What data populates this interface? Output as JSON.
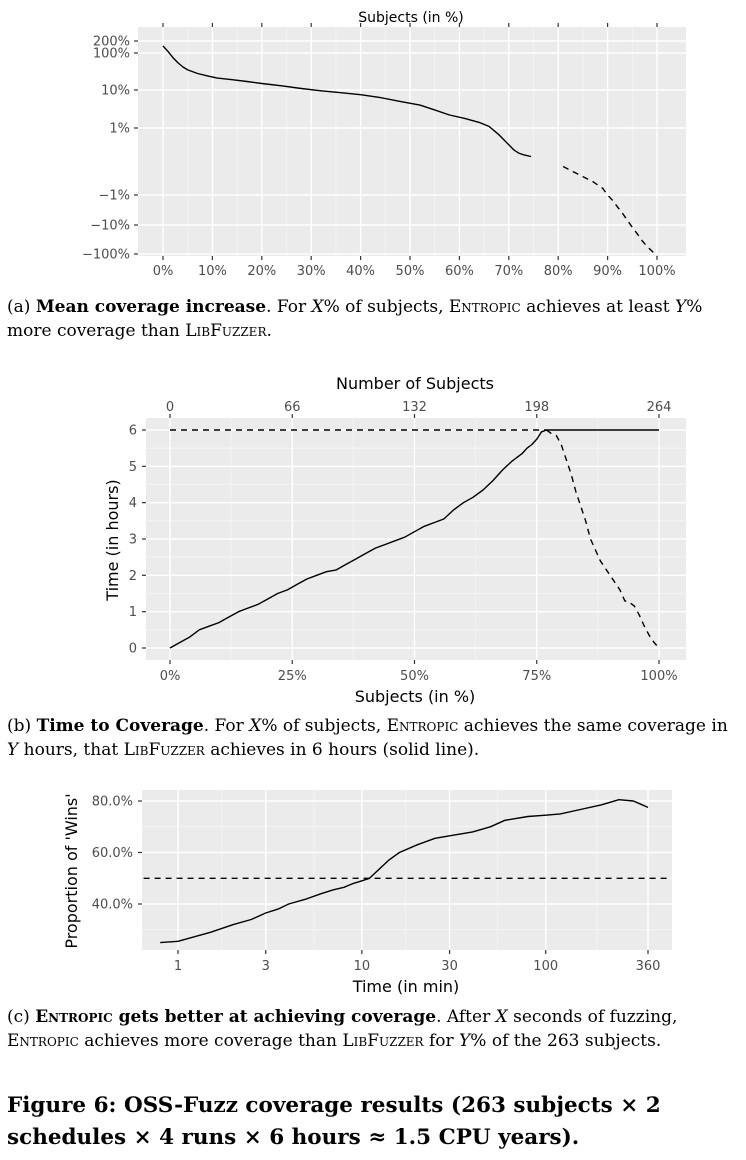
{
  "chart_data": [
    {
      "type": "line",
      "title": "Subjects (in %)",
      "xlabel": "",
      "ylabel": "",
      "x_tick_labels": [
        "0%",
        "10%",
        "20%",
        "30%",
        "40%",
        "50%",
        "60%",
        "70%",
        "80%",
        "90%",
        "100%"
      ],
      "y_tick_labels": [
        "200%",
        "100%",
        "10%",
        "1%",
        "−1%",
        "−10%",
        "−100%"
      ],
      "xlim": [
        0,
        100
      ],
      "y_scale": "symmetric-log",
      "grid": true,
      "series": [
        {
          "style": "solid",
          "x": [
            0,
            1,
            2,
            3,
            4,
            5,
            7,
            9,
            11,
            14,
            17,
            20,
            24,
            28,
            32,
            36,
            40,
            44,
            48,
            52,
            55,
            58,
            61,
            64,
            66,
            68,
            70,
            71,
            72,
            73,
            74.5
          ],
          "y": [
            150,
            110,
            75,
            55,
            42,
            35,
            28,
            24,
            21,
            19,
            17,
            15,
            13,
            11,
            9.5,
            8.5,
            7.5,
            6.3,
            5,
            4,
            3,
            2.2,
            1.8,
            1.4,
            1.1,
            0.8,
            0.5,
            0.35,
            0.25,
            0.2,
            0.15
          ]
        },
        {
          "style": "dashed",
          "x": [
            81,
            83,
            85,
            87,
            89,
            90,
            91,
            92,
            93,
            94,
            95,
            96,
            97,
            98,
            99,
            100
          ],
          "y": [
            -0.15,
            -0.3,
            -0.45,
            -0.6,
            -0.8,
            -1,
            -1.5,
            -2.5,
            -4,
            -7,
            -12,
            -20,
            -35,
            -55,
            -80,
            -120
          ]
        }
      ]
    },
    {
      "type": "line",
      "title": "Number of Subjects",
      "xlabel": "Subjects (in %)",
      "ylabel": "Time (in hours)",
      "x_tick_labels": [
        "0%",
        "25%",
        "50%",
        "75%",
        "100%"
      ],
      "x2_tick_labels": [
        "0",
        "66",
        "132",
        "198",
        "264"
      ],
      "y_tick_labels": [
        "0",
        "1",
        "2",
        "3",
        "4",
        "5",
        "6"
      ],
      "xlim": [
        0,
        100
      ],
      "ylim": [
        0,
        6
      ],
      "grid": true,
      "series": [
        {
          "style": "solid",
          "x": [
            0,
            2,
            4,
            6,
            8,
            10,
            12,
            14,
            16,
            18,
            20,
            22,
            24,
            26,
            28,
            30,
            32,
            34,
            36,
            38,
            40,
            42,
            44,
            46,
            48,
            50,
            52,
            54,
            56,
            58,
            60,
            62,
            64,
            66,
            68,
            70,
            72,
            73,
            74,
            75,
            76,
            77,
            100
          ],
          "y": [
            0,
            0.15,
            0.3,
            0.5,
            0.6,
            0.7,
            0.85,
            1.0,
            1.1,
            1.2,
            1.35,
            1.5,
            1.6,
            1.75,
            1.9,
            2.0,
            2.1,
            2.15,
            2.3,
            2.45,
            2.6,
            2.75,
            2.85,
            2.95,
            3.05,
            3.2,
            3.35,
            3.45,
            3.55,
            3.8,
            4.0,
            4.15,
            4.35,
            4.6,
            4.9,
            5.15,
            5.35,
            5.5,
            5.6,
            5.75,
            5.95,
            6.0,
            6.0
          ]
        },
        {
          "style": "dashed",
          "x": [
            0,
            77
          ],
          "y": [
            6,
            6
          ]
        },
        {
          "style": "dashed",
          "x": [
            77,
            78,
            79,
            80,
            81,
            82,
            83,
            84,
            85,
            86,
            87,
            88,
            89,
            90,
            91,
            92,
            93,
            94,
            95,
            96,
            97,
            98,
            99,
            100
          ],
          "y": [
            6,
            5.9,
            5.85,
            5.6,
            5.2,
            4.8,
            4.3,
            3.9,
            3.5,
            3.0,
            2.7,
            2.4,
            2.2,
            2.0,
            1.8,
            1.6,
            1.3,
            1.25,
            1.15,
            0.9,
            0.6,
            0.35,
            0.15,
            0
          ]
        }
      ]
    },
    {
      "type": "line",
      "title": "",
      "xlabel": "Time (in min)",
      "ylabel": "Proportion of 'Wins'",
      "x_tick_labels": [
        "1",
        "3",
        "10",
        "30",
        "100",
        "360"
      ],
      "y_tick_labels": [
        "80.0%",
        "60.0%",
        "40.0%"
      ],
      "x_scale": "log",
      "xlim": [
        0.65,
        500
      ],
      "ylim": [
        0.2,
        0.85
      ],
      "grid": true,
      "series": [
        {
          "style": "solid",
          "x": [
            0.8,
            1,
            1.5,
            2,
            2.5,
            3,
            3.5,
            4,
            5,
            6,
            7,
            8,
            9,
            10,
            11,
            12,
            14,
            16,
            20,
            25,
            30,
            40,
            50,
            60,
            80,
            100,
            120,
            150,
            200,
            250,
            300,
            360
          ],
          "y": [
            0.25,
            0.255,
            0.29,
            0.32,
            0.34,
            0.365,
            0.38,
            0.4,
            0.42,
            0.44,
            0.455,
            0.465,
            0.48,
            0.49,
            0.5,
            0.525,
            0.57,
            0.6,
            0.63,
            0.655,
            0.665,
            0.68,
            0.7,
            0.725,
            0.74,
            0.745,
            0.75,
            0.765,
            0.785,
            0.805,
            0.8,
            0.775
          ]
        },
        {
          "style": "dashed",
          "x": [
            0.65,
            500
          ],
          "y": [
            0.5,
            0.5
          ]
        }
      ]
    }
  ],
  "captions": {
    "a": {
      "prefix": "(a) ",
      "bold": "Mean coverage increase",
      "p1": ". For ",
      "v1": "X",
      "p2": "% of subjects, ",
      "sc1": "Entropic",
      "p3": " achieves at least ",
      "v2": "Y",
      "p4": "% more coverage than ",
      "sc2": "LibFuzzer",
      "p5": "."
    },
    "b": {
      "prefix": "(b) ",
      "bold": "Time to Coverage",
      "p1": ". For ",
      "v1": "X",
      "p2": "% of subjects, ",
      "sc1": "Entropic",
      "p3": " achieves the same coverage in ",
      "v2": "Y",
      "p4": " hours, that ",
      "sc2": "LibFuzzer",
      "p5": " achieves in 6 hours (solid line)."
    },
    "c": {
      "prefix": "(c) ",
      "bold_sc": "Entropic",
      "bold": " gets better at achieving coverage",
      "p1": ". After ",
      "v1": "X",
      "p2": " seconds of fuzzing, ",
      "sc1": "Entropic",
      "p3": " achieves more coverage than ",
      "sc2": "LibFuzzer",
      "p4": " for ",
      "v2": "Y",
      "p5": "% of the 263 subjects."
    }
  },
  "figure_caption": "Figure 6: OSS-Fuzz coverage results (263 subjects × 2 schedules × 4 runs × 6 hours ≈ 1.5 CPU years)."
}
